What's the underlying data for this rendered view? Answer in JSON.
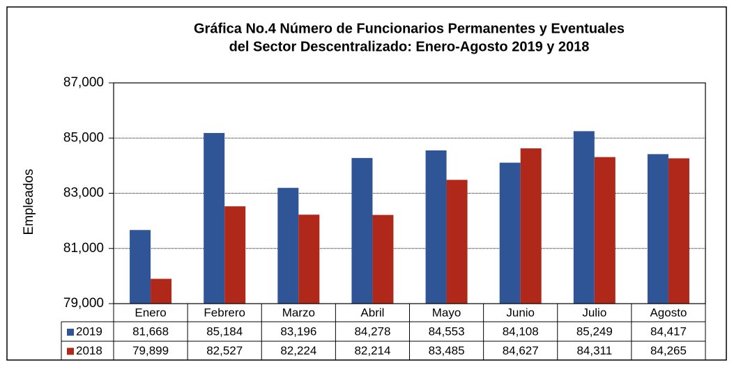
{
  "chart_data": {
    "type": "bar",
    "title": [
      "Gráfica No.4  Número de Funcionarios Permanentes y Eventuales",
      "del Sector Descentralizado: Enero-Agosto 2019 y 2018"
    ],
    "y_label": "Empleados",
    "categories": [
      "Enero",
      "Febrero",
      "Marzo",
      "Abril",
      "Mayo",
      "Junio",
      "Julio",
      "Agosto"
    ],
    "series": [
      {
        "name": "2019",
        "color": "#2f5597",
        "values": [
          81668,
          85184,
          83196,
          84278,
          84553,
          84108,
          85249,
          84417
        ],
        "value_labels": [
          "81,668",
          "85,184",
          "83,196",
          "84,278",
          "84,553",
          "84,108",
          "85,249",
          "84,417"
        ]
      },
      {
        "name": "2018",
        "color": "#b0281a",
        "values": [
          79899,
          82527,
          82224,
          82214,
          83485,
          84627,
          84311,
          84265
        ],
        "value_labels": [
          "79,899",
          "82,527",
          "82,224",
          "82,214",
          "83,485",
          "84,627",
          "84,311",
          "84,265"
        ]
      }
    ],
    "ylim": [
      79000,
      87000
    ],
    "yticks": [
      {
        "value": 79000,
        "label": "79,000"
      },
      {
        "value": 81000,
        "label": "81,000"
      },
      {
        "value": 83000,
        "label": "83,000"
      },
      {
        "value": 85000,
        "label": "85,000"
      },
      {
        "value": 87000,
        "label": "87,000"
      }
    ],
    "grid": true
  }
}
